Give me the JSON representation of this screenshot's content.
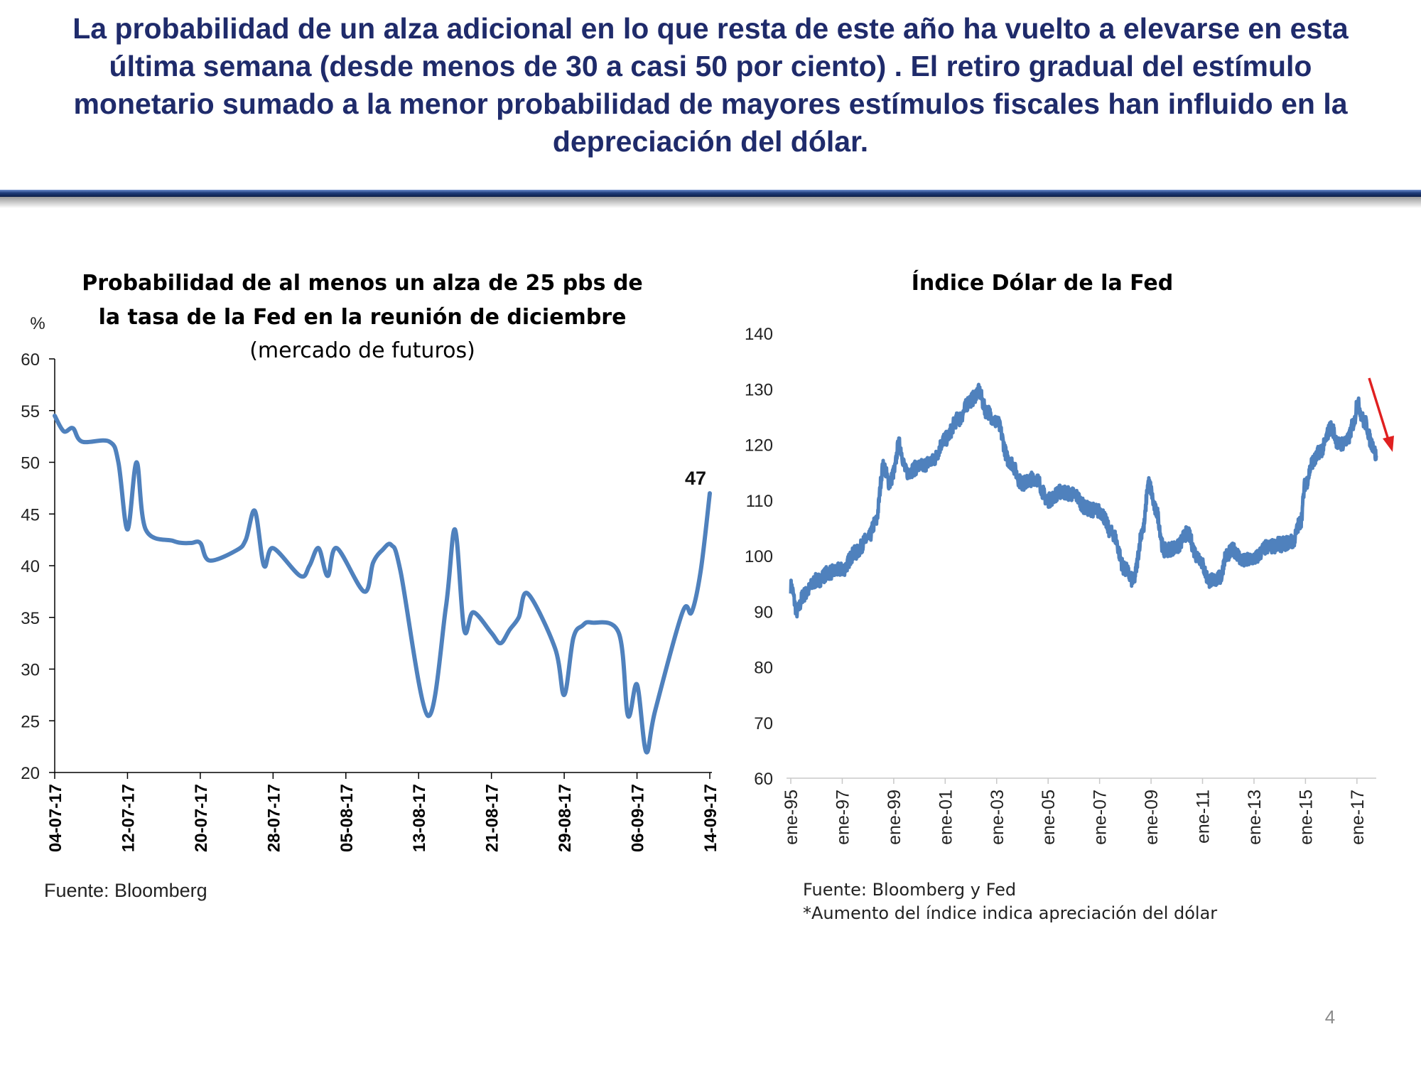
{
  "headline": {
    "lines": [
      "La probabilidad de un alza adicional en lo que resta de este año ha vuelto a elevarse en esta",
      "última semana (desde menos de 30 a casi 50 por ciento) . El retiro gradual del estímulo",
      "monetario sumado a la menor probabilidad de mayores estímulos fiscales han influido en la",
      "depreciación del dólar."
    ]
  },
  "colors": {
    "headline": "#1f2b6b",
    "series": "#4f81bd",
    "arrow": "#e02020",
    "divider": "#1f3c7a"
  },
  "page_number": "4",
  "chart_data": [
    {
      "type": "line",
      "title_lines": [
        "Probabilidad de al menos un alza de 25 pbs de",
        "la tasa de la Fed en la reunión de diciembre"
      ],
      "subtitle": "(mercado de futuros)",
      "ylabel": "%",
      "ylim": [
        20,
        60
      ],
      "yticks": [
        20,
        25,
        30,
        35,
        40,
        45,
        50,
        55,
        60
      ],
      "x_start": "2017-07-04",
      "x_end": "2017-09-14",
      "xticks": [
        "04-07-17",
        "12-07-17",
        "20-07-17",
        "28-07-17",
        "05-08-17",
        "13-08-17",
        "21-08-17",
        "29-08-17",
        "06-09-17",
        "14-09-17"
      ],
      "grid": false,
      "annotation": {
        "date": "2017-09-14",
        "value": 47,
        "text": "47"
      },
      "source": "Fuente: Bloomberg",
      "series": [
        {
          "points": [
            [
              "2017-07-04",
              54.5
            ],
            [
              "2017-07-05",
              53.0
            ],
            [
              "2017-07-06",
              53.3
            ],
            [
              "2017-07-07",
              52.0
            ],
            [
              "2017-07-10",
              52.0
            ],
            [
              "2017-07-11",
              50.0
            ],
            [
              "2017-07-12",
              43.5
            ],
            [
              "2017-07-13",
              50.0
            ],
            [
              "2017-07-14",
              43.5
            ],
            [
              "2017-07-17",
              42.4
            ],
            [
              "2017-07-18",
              42.2
            ],
            [
              "2017-07-19",
              42.2
            ],
            [
              "2017-07-20",
              42.2
            ],
            [
              "2017-07-21",
              40.5
            ],
            [
              "2017-07-24",
              41.5
            ],
            [
              "2017-07-25",
              42.5
            ],
            [
              "2017-07-26",
              45.3
            ],
            [
              "2017-07-27",
              40.0
            ],
            [
              "2017-07-28",
              41.7
            ],
            [
              "2017-07-31",
              39.0
            ],
            [
              "2017-08-01",
              40.0
            ],
            [
              "2017-08-02",
              41.7
            ],
            [
              "2017-08-03",
              39.0
            ],
            [
              "2017-08-04",
              41.7
            ],
            [
              "2017-08-07",
              37.5
            ],
            [
              "2017-08-08",
              40.3
            ],
            [
              "2017-08-09",
              41.5
            ],
            [
              "2017-08-10",
              42.0
            ],
            [
              "2017-08-11",
              39.5
            ],
            [
              "2017-08-14",
              25.5
            ],
            [
              "2017-08-16",
              36.0
            ],
            [
              "2017-08-17",
              43.5
            ],
            [
              "2017-08-18",
              33.8
            ],
            [
              "2017-08-19",
              35.5
            ],
            [
              "2017-08-21",
              33.5
            ],
            [
              "2017-08-22",
              32.5
            ],
            [
              "2017-08-23",
              33.8
            ],
            [
              "2017-08-24",
              35.0
            ],
            [
              "2017-08-25",
              37.3
            ],
            [
              "2017-08-28",
              32.0
            ],
            [
              "2017-08-29",
              27.5
            ],
            [
              "2017-08-30",
              33.0
            ],
            [
              "2017-08-31",
              34.2
            ],
            [
              "2017-09-01",
              34.5
            ],
            [
              "2017-09-04",
              33.5
            ],
            [
              "2017-09-05",
              25.5
            ],
            [
              "2017-09-06",
              28.5
            ],
            [
              "2017-09-07",
              22.0
            ],
            [
              "2017-09-08",
              26.0
            ],
            [
              "2017-09-11",
              35.5
            ],
            [
              "2017-09-12",
              35.5
            ],
            [
              "2017-09-13",
              39.5
            ],
            [
              "2017-09-14",
              47.0
            ]
          ]
        }
      ]
    },
    {
      "type": "line",
      "title": "Índice Dólar de la Fed",
      "ylim": [
        60,
        140
      ],
      "yticks": [
        60,
        70,
        80,
        90,
        100,
        110,
        120,
        130,
        140
      ],
      "x_range": [
        1995.0,
        2017.75
      ],
      "xticks": [
        "ene-95",
        "ene-97",
        "ene-99",
        "ene-01",
        "ene-03",
        "ene-05",
        "ene-07",
        "ene-09",
        "ene-11",
        "ene-13",
        "ene-15",
        "ene-17"
      ],
      "grid": false,
      "arrow": "trend-down",
      "source_lines": [
        "Fuente: Bloomberg y Fed",
        "*Aumento del índice indica apreciación del dólar"
      ],
      "series": [
        {
          "points": [
            [
              1995.0,
              94.5
            ],
            [
              1995.25,
              90.0
            ],
            [
              1995.5,
              93.0
            ],
            [
              1996.0,
              95.5
            ],
            [
              1996.5,
              97.0
            ],
            [
              1997.0,
              97.5
            ],
            [
              1997.5,
              100.5
            ],
            [
              1998.0,
              103.0
            ],
            [
              1998.3,
              106.0
            ],
            [
              1998.6,
              116.0
            ],
            [
              1998.85,
              113.0
            ],
            [
              1999.0,
              115.0
            ],
            [
              1999.2,
              120.0
            ],
            [
              1999.5,
              115.0
            ],
            [
              2000.0,
              116.0
            ],
            [
              2000.5,
              117.0
            ],
            [
              2001.0,
              121.0
            ],
            [
              2001.5,
              124.5
            ],
            [
              2002.0,
              128.0
            ],
            [
              2002.3,
              129.5
            ],
            [
              2002.6,
              126.0
            ],
            [
              2003.0,
              124.0
            ],
            [
              2003.5,
              117.0
            ],
            [
              2004.0,
              113.0
            ],
            [
              2004.5,
              114.0
            ],
            [
              2005.0,
              110.0
            ],
            [
              2005.5,
              111.5
            ],
            [
              2006.0,
              111.0
            ],
            [
              2006.5,
              108.5
            ],
            [
              2007.0,
              108.0
            ],
            [
              2007.5,
              104.0
            ],
            [
              2008.0,
              97.5
            ],
            [
              2008.3,
              95.5
            ],
            [
              2008.7,
              105.0
            ],
            [
              2008.9,
              113.0
            ],
            [
              2009.2,
              108.0
            ],
            [
              2009.5,
              101.0
            ],
            [
              2010.0,
              101.5
            ],
            [
              2010.4,
              104.0
            ],
            [
              2010.8,
              100.0
            ],
            [
              2011.3,
              95.5
            ],
            [
              2011.7,
              96.0
            ],
            [
              2011.9,
              100.0
            ],
            [
              2012.2,
              101.0
            ],
            [
              2012.6,
              99.0
            ],
            [
              2013.0,
              99.5
            ],
            [
              2013.5,
              101.5
            ],
            [
              2014.0,
              102.0
            ],
            [
              2014.5,
              102.5
            ],
            [
              2014.8,
              106.0
            ],
            [
              2015.0,
              113.0
            ],
            [
              2015.3,
              117.0
            ],
            [
              2015.6,
              119.0
            ],
            [
              2016.0,
              123.0
            ],
            [
              2016.3,
              120.0
            ],
            [
              2016.6,
              120.5
            ],
            [
              2016.9,
              124.0
            ],
            [
              2017.0,
              127.5
            ],
            [
              2017.3,
              124.0
            ],
            [
              2017.6,
              120.0
            ],
            [
              2017.75,
              118.0
            ]
          ]
        }
      ]
    }
  ]
}
